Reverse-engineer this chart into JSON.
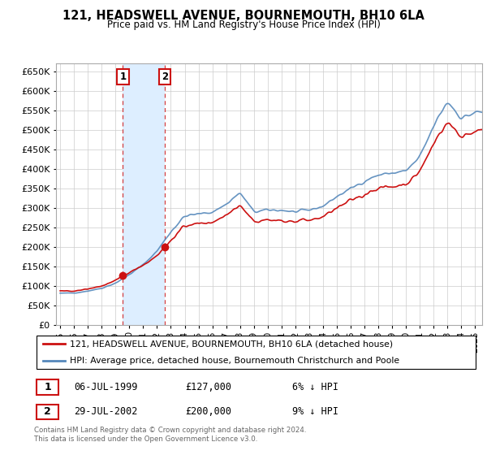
{
  "title": "121, HEADSWELL AVENUE, BOURNEMOUTH, BH10 6LA",
  "subtitle": "Price paid vs. HM Land Registry's House Price Index (HPI)",
  "legend_line1": "121, HEADSWELL AVENUE, BOURNEMOUTH, BH10 6LA (detached house)",
  "legend_line2": "HPI: Average price, detached house, Bournemouth Christchurch and Poole",
  "transaction1_date": "06-JUL-1999",
  "transaction1_price": "£127,000",
  "transaction1_hpi": "6% ↓ HPI",
  "transaction1_year": 1999.54,
  "transaction1_value": 127000,
  "transaction2_date": "29-JUL-2002",
  "transaction2_price": "£200,000",
  "transaction2_hpi": "9% ↓ HPI",
  "transaction2_year": 2002.57,
  "transaction2_value": 200000,
  "footer": "Contains HM Land Registry data © Crown copyright and database right 2024.\nThis data is licensed under the Open Government Licence v3.0.",
  "hpi_color": "#5588bb",
  "price_color": "#cc1111",
  "grid_color": "#cccccc",
  "span_color": "#ddeeff",
  "ylim_min": 0,
  "ylim_max": 670000,
  "xmin": 1994.7,
  "xmax": 2025.5
}
